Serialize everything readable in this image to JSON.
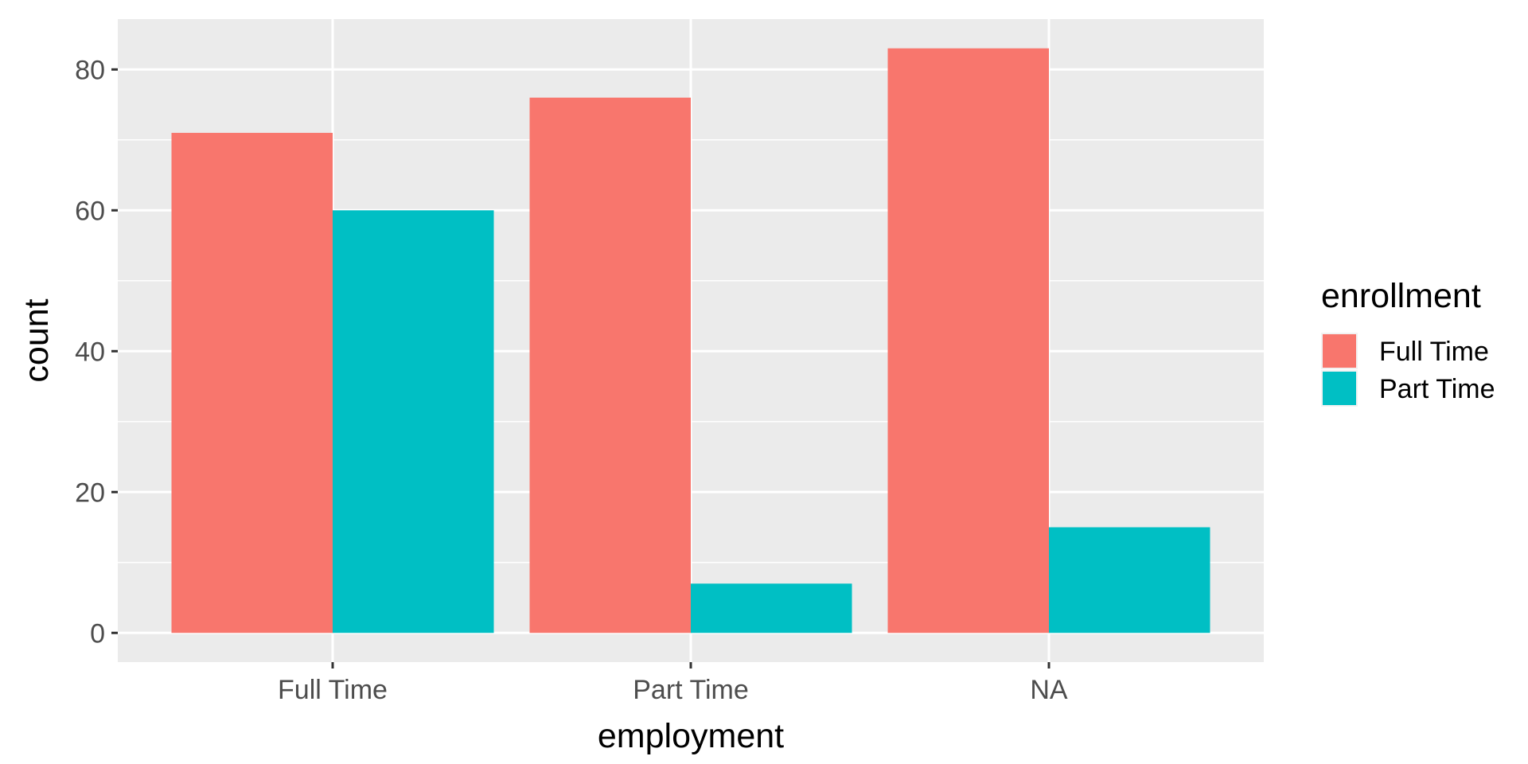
{
  "chart_data": {
    "type": "bar",
    "categories": [
      "Full Time",
      "Part Time",
      "NA"
    ],
    "series": [
      {
        "name": "Full Time",
        "values": [
          71,
          76,
          83
        ],
        "color": "#F8766D"
      },
      {
        "name": "Part Time",
        "values": [
          60,
          7,
          15
        ],
        "color": "#00BFC4"
      }
    ],
    "xlabel": "employment",
    "ylabel": "count",
    "ylim": [
      -4.15,
      87.15
    ],
    "yticks": [
      0,
      20,
      40,
      60,
      80
    ],
    "ytick_labels": [
      "0",
      "20",
      "40",
      "60",
      "80"
    ],
    "legend": {
      "title": "enrollment",
      "position": "right"
    },
    "grid": true,
    "panel_background": "#EBEBEB",
    "grid_color": "#FFFFFF"
  }
}
